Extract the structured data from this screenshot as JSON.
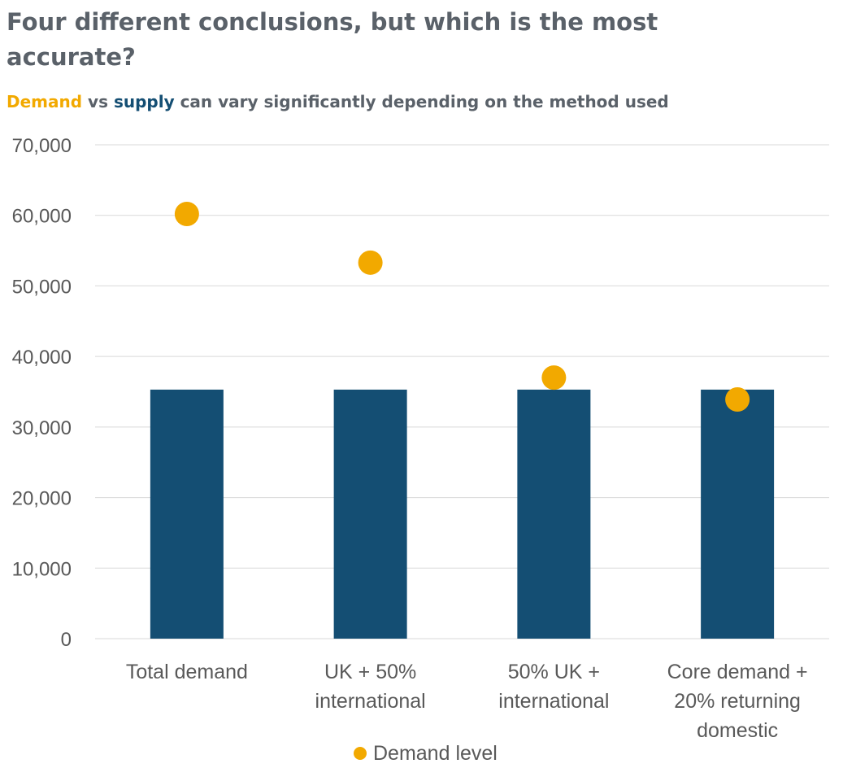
{
  "header": {
    "title": "Four different conclusions, but which is the most accurate?",
    "subtitle_demand": "Demand",
    "subtitle_vs": " vs ",
    "subtitle_supply": "supply",
    "subtitle_rest": " can vary significantly depending on the method used"
  },
  "colors": {
    "bar": "#144e73",
    "dot": "#f2a900",
    "grid": "#d9d9d9",
    "text": "#595959"
  },
  "chart_data": {
    "type": "bar",
    "categories": [
      [
        "Total demand"
      ],
      [
        "UK + 50%",
        "international"
      ],
      [
        "50% UK +",
        "international"
      ],
      [
        "Core demand +",
        "20% returning",
        "domestic"
      ]
    ],
    "series": [
      {
        "type": "bar",
        "values": [
          35300,
          35300,
          35300,
          35300
        ]
      },
      {
        "name": "Demand level",
        "type": "scatter",
        "values": [
          60200,
          53300,
          37000,
          33900
        ]
      }
    ],
    "ylim": [
      0,
      70000
    ],
    "yticks": [
      0,
      10000,
      20000,
      30000,
      40000,
      50000,
      60000,
      70000
    ],
    "ytick_labels": [
      "0",
      "10,000",
      "20,000",
      "30,000",
      "40,000",
      "50,000",
      "60,000",
      "70,000"
    ],
    "grid": true,
    "legend": {
      "placement": "bottom",
      "entries": [
        "Demand level"
      ]
    }
  }
}
